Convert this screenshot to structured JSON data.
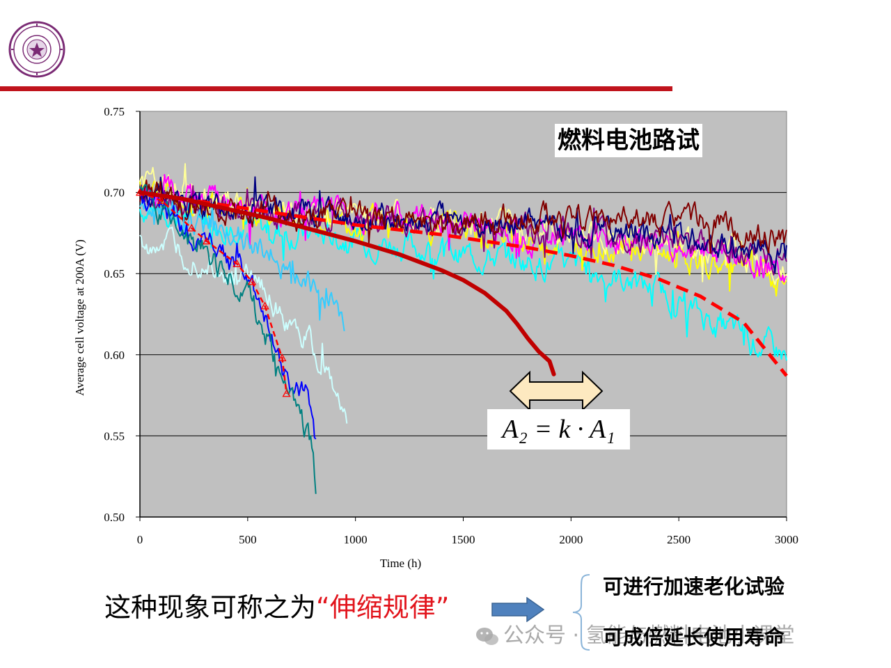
{
  "header": {
    "logo": {
      "kind": "university-seal",
      "text": "清华大学 TSINGHUA UNIVERSITY 1911"
    },
    "rule_color": "#c0141c"
  },
  "chart_data": {
    "type": "line",
    "title": "燃料电池路试",
    "xlabel": "Time (h)",
    "ylabel": "Average cell voltage at 200A (V)",
    "xlim": [
      0,
      3000
    ],
    "ylim": [
      0.5,
      0.75
    ],
    "xticks": [
      "0",
      "500",
      "1000",
      "1500",
      "2000",
      "2500",
      "3000"
    ],
    "yticks": [
      "0.50",
      "0.55",
      "0.60",
      "0.65",
      "0.70",
      "0.75"
    ],
    "xtick_values": [
      0,
      500,
      1000,
      1500,
      2000,
      2500,
      3000
    ],
    "ytick_values": [
      0.5,
      0.55,
      0.6,
      0.65,
      0.7,
      0.75
    ],
    "grid": "horizontal",
    "plot_background": "#c0c0c0",
    "legend": "none",
    "series": [
      {
        "color": "#00ffff",
        "style": "noisy",
        "x": [
          0,
          300,
          600,
          900,
          1200,
          1500,
          1800,
          2100,
          2400,
          2700,
          3000
        ],
        "y": [
          0.69,
          0.685,
          0.676,
          0.672,
          0.668,
          0.662,
          0.658,
          0.652,
          0.64,
          0.618,
          0.6
        ]
      },
      {
        "color": "#ffff00",
        "style": "noisy",
        "x": [
          0,
          300,
          600,
          900,
          1200,
          1500,
          1800,
          2100,
          2400,
          2700,
          3000
        ],
        "y": [
          0.702,
          0.694,
          0.688,
          0.684,
          0.68,
          0.676,
          0.672,
          0.668,
          0.663,
          0.655,
          0.645
        ]
      },
      {
        "color": "#ffff99",
        "style": "noisy",
        "x": [
          0,
          300,
          600,
          900,
          1200,
          1500,
          1800,
          2100,
          2400,
          2700,
          3000
        ],
        "y": [
          0.708,
          0.696,
          0.69,
          0.688,
          0.686,
          0.682,
          0.678,
          0.674,
          0.67,
          0.664,
          0.655
        ]
      },
      {
        "color": "#ff00ff",
        "style": "noisy",
        "x": [
          0,
          300,
          600,
          900,
          1200,
          1500,
          1800,
          2100,
          2400,
          2700,
          3000
        ],
        "y": [
          0.704,
          0.694,
          0.69,
          0.688,
          0.684,
          0.68,
          0.676,
          0.672,
          0.668,
          0.662,
          0.65
        ]
      },
      {
        "color": "#800080",
        "style": "noisy",
        "x": [
          0,
          300,
          600,
          900,
          1200,
          1500,
          1800,
          2100,
          2400,
          2700,
          3000
        ],
        "y": [
          0.698,
          0.692,
          0.688,
          0.686,
          0.684,
          0.682,
          0.678,
          0.674,
          0.67,
          0.666,
          0.66
        ]
      },
      {
        "color": "#000080",
        "style": "noisy",
        "x": [
          0,
          300,
          600,
          900,
          1200,
          1500,
          1800,
          2100,
          2400,
          2700,
          3000
        ],
        "y": [
          0.7,
          0.692,
          0.688,
          0.686,
          0.684,
          0.682,
          0.68,
          0.678,
          0.674,
          0.67,
          0.664
        ]
      },
      {
        "color": "#800000",
        "style": "noisy",
        "x": [
          0,
          300,
          600,
          900,
          1200,
          1500,
          1800,
          2100,
          2400,
          2700,
          3000
        ],
        "y": [
          0.7,
          0.69,
          0.686,
          0.684,
          0.682,
          0.682,
          0.684,
          0.684,
          0.682,
          0.68,
          0.67
        ]
      },
      {
        "color": "#33ccff",
        "style": "noisy",
        "x": [
          0,
          200,
          400,
          600,
          700,
          800,
          900,
          950
        ],
        "y": [
          0.69,
          0.684,
          0.676,
          0.665,
          0.65,
          0.64,
          0.63,
          0.62
        ]
      },
      {
        "color": "#ccffff",
        "style": "noisy",
        "x": [
          0,
          100,
          200,
          300,
          400,
          500,
          600,
          700,
          800,
          900,
          960
        ],
        "y": [
          0.672,
          0.666,
          0.66,
          0.656,
          0.652,
          0.646,
          0.636,
          0.622,
          0.604,
          0.584,
          0.56
        ]
      },
      {
        "color": "#0000ff",
        "style": "noisy",
        "x": [
          0,
          100,
          200,
          300,
          400,
          500,
          550,
          600,
          650,
          700,
          750,
          800,
          820
        ],
        "y": [
          0.7,
          0.692,
          0.68,
          0.67,
          0.66,
          0.645,
          0.63,
          0.612,
          0.595,
          0.585,
          0.58,
          0.565,
          0.545
        ]
      },
      {
        "color": "#008080",
        "style": "noisy",
        "x": [
          0,
          100,
          200,
          300,
          400,
          500,
          550,
          600,
          650,
          700,
          750,
          800,
          820
        ],
        "y": [
          0.7,
          0.688,
          0.676,
          0.664,
          0.65,
          0.636,
          0.622,
          0.608,
          0.59,
          0.575,
          0.56,
          0.54,
          0.51
        ]
      },
      {
        "color": "#ff0000",
        "style": "dashed-triangles",
        "x": [
          0,
          100,
          240,
          310,
          450,
          520,
          580,
          660,
          680
        ],
        "y": [
          0.7,
          0.695,
          0.678,
          0.67,
          0.656,
          0.645,
          0.63,
          0.598,
          0.576
        ]
      },
      {
        "color": "#ff0000",
        "style": "dashed-bold",
        "x": [
          0,
          200,
          400,
          600,
          800,
          1000,
          1200,
          1400,
          1600,
          1800,
          2000,
          2200,
          2400,
          2600,
          2800,
          3000
        ],
        "y": [
          0.7,
          0.696,
          0.692,
          0.688,
          0.684,
          0.68,
          0.677,
          0.674,
          0.67,
          0.666,
          0.661,
          0.655,
          0.647,
          0.636,
          0.62,
          0.587
        ]
      },
      {
        "color": "#c00000",
        "style": "solid-bold",
        "x": [
          0,
          200,
          400,
          600,
          800,
          1000,
          1200,
          1400,
          1500,
          1600,
          1700,
          1750,
          1800,
          1850,
          1900,
          1920
        ],
        "y": [
          0.7,
          0.696,
          0.69,
          0.684,
          0.677,
          0.67,
          0.662,
          0.652,
          0.646,
          0.638,
          0.627,
          0.619,
          0.61,
          0.602,
          0.596,
          0.588
        ]
      }
    ],
    "annotations": {
      "formula": "A₂ = k · A₁",
      "double_arrow": {
        "fill": "#fde9c0",
        "stroke": "#000000"
      }
    }
  },
  "bottom": {
    "sentence_prefix": "这种现象可称之为",
    "sentence_highlight": "“伸缩规律”",
    "bullet_1": "可进行加速老化试验",
    "bullet_2": "可成倍延长使用寿命",
    "watermark": "公众号 · 氢能与燃料电池小课堂"
  },
  "colors": {
    "highlight": "#e2141c",
    "arrow": "#4f81bd"
  }
}
